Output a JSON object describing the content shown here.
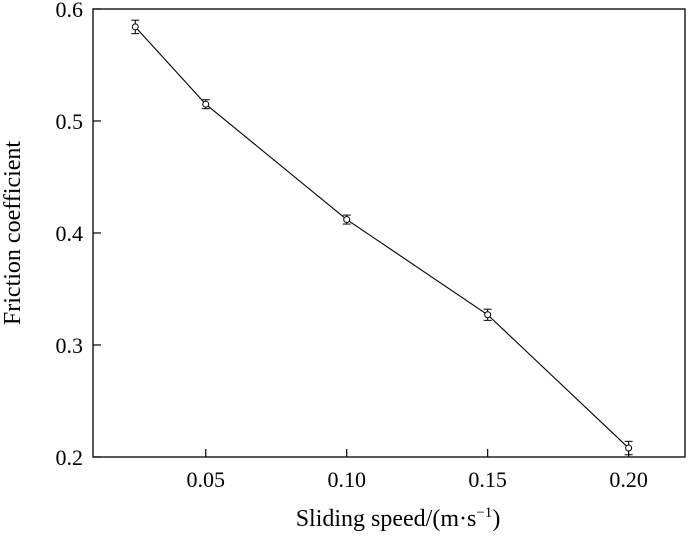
{
  "chart_data": {
    "type": "line",
    "title": "",
    "xlabel": "Sliding speed/(m·s",
    "xlabel_superscript": "−1",
    "xlabel_suffix": ")",
    "ylabel": "Friction coefficient",
    "xlim": [
      0.01,
      0.22
    ],
    "ylim": [
      0.2,
      0.6
    ],
    "xticks": [
      0.05,
      0.1,
      0.15,
      0.2
    ],
    "xtick_labels": [
      "0.05",
      "0.10",
      "0.15",
      "0.20"
    ],
    "yticks": [
      0.2,
      0.3,
      0.4,
      0.5,
      0.6
    ],
    "ytick_labels": [
      "0.2",
      "0.3",
      "0.4",
      "0.5",
      "0.6"
    ],
    "grid": false,
    "legend": "none",
    "line_color": "#000000",
    "marker": "open-circle",
    "series": [
      {
        "x": [
          0.025,
          0.05,
          0.1,
          0.15,
          0.2
        ],
        "y": [
          0.584,
          0.515,
          0.412,
          0.327,
          0.208
        ],
        "error": [
          0.006,
          0.004,
          0.004,
          0.005,
          0.006
        ]
      }
    ]
  }
}
